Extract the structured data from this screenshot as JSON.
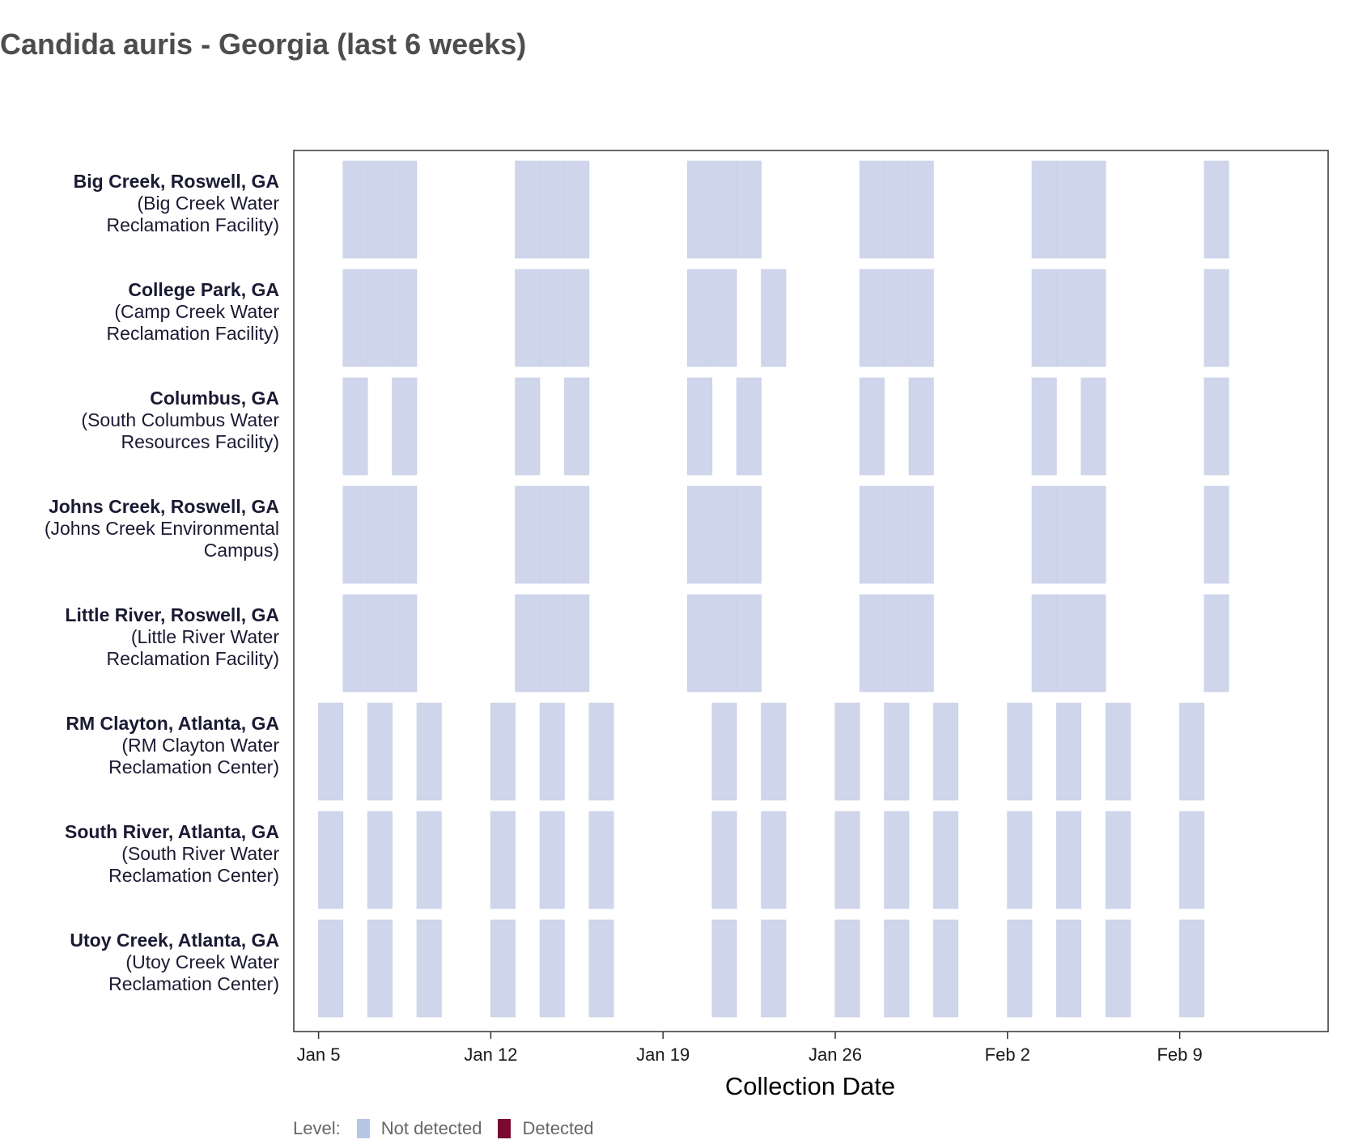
{
  "chart_data": {
    "type": "heatmap",
    "title": "Candida auris - Georgia (last 6 weeks)",
    "xlabel": "Collection Date",
    "ylabel": "",
    "x_ticks": [
      "Jan 5",
      "Jan 12",
      "Jan 19",
      "Jan 26",
      "Feb 2",
      "Feb 9"
    ],
    "xlim": [
      "2025-01-04",
      "2025-02-14"
    ],
    "colors": {
      "Not detected": "#cfd6ec",
      "Detected": "#7a0a2f"
    },
    "legend": {
      "title": "Level:",
      "position": "bottom-left",
      "entries": [
        "Not detected",
        "Detected"
      ]
    },
    "rows": [
      {
        "site": "Big Creek, Roswell, GA",
        "facility": "(Big Creek Water Reclamation Facility)",
        "not_detected": [
          "2025-01-06",
          "2025-01-07",
          "2025-01-08",
          "2025-01-13",
          "2025-01-14",
          "2025-01-15",
          "2025-01-20",
          "2025-01-21",
          "2025-01-22",
          "2025-01-27",
          "2025-01-28",
          "2025-01-29",
          "2025-02-03",
          "2025-02-04",
          "2025-02-05",
          "2025-02-10"
        ],
        "detected": []
      },
      {
        "site": "College Park, GA",
        "facility": "(Camp Creek Water Reclamation Facility)",
        "not_detected": [
          "2025-01-06",
          "2025-01-07",
          "2025-01-08",
          "2025-01-13",
          "2025-01-14",
          "2025-01-15",
          "2025-01-20",
          "2025-01-21",
          "2025-01-23",
          "2025-01-27",
          "2025-01-28",
          "2025-01-29",
          "2025-02-03",
          "2025-02-04",
          "2025-02-05",
          "2025-02-10"
        ],
        "detected": []
      },
      {
        "site": "Columbus, GA",
        "facility": "(South Columbus Water Resources Facility)",
        "not_detected": [
          "2025-01-06",
          "2025-01-08",
          "2025-01-13",
          "2025-01-15",
          "2025-01-20",
          "2025-01-22",
          "2025-01-27",
          "2025-01-29",
          "2025-02-03",
          "2025-02-05",
          "2025-02-10"
        ],
        "detected": []
      },
      {
        "site": "Johns Creek, Roswell, GA",
        "facility": "(Johns Creek Environmental Campus)",
        "not_detected": [
          "2025-01-06",
          "2025-01-07",
          "2025-01-08",
          "2025-01-13",
          "2025-01-14",
          "2025-01-15",
          "2025-01-20",
          "2025-01-21",
          "2025-01-22",
          "2025-01-27",
          "2025-01-28",
          "2025-01-29",
          "2025-02-03",
          "2025-02-04",
          "2025-02-05",
          "2025-02-10"
        ],
        "detected": []
      },
      {
        "site": "Little River, Roswell, GA",
        "facility": "(Little River Water Reclamation Facility)",
        "not_detected": [
          "2025-01-06",
          "2025-01-07",
          "2025-01-08",
          "2025-01-13",
          "2025-01-14",
          "2025-01-15",
          "2025-01-20",
          "2025-01-21",
          "2025-01-22",
          "2025-01-27",
          "2025-01-28",
          "2025-01-29",
          "2025-02-03",
          "2025-02-04",
          "2025-02-05",
          "2025-02-10"
        ],
        "detected": []
      },
      {
        "site": "RM Clayton, Atlanta, GA",
        "facility": "(RM Clayton Water Reclamation Center)",
        "not_detected": [
          "2025-01-05",
          "2025-01-07",
          "2025-01-09",
          "2025-01-12",
          "2025-01-14",
          "2025-01-16",
          "2025-01-21",
          "2025-01-23",
          "2025-01-26",
          "2025-01-28",
          "2025-01-30",
          "2025-02-02",
          "2025-02-04",
          "2025-02-06",
          "2025-02-09"
        ],
        "detected": []
      },
      {
        "site": "South River, Atlanta, GA",
        "facility": "(South River Water Reclamation Center)",
        "not_detected": [
          "2025-01-05",
          "2025-01-07",
          "2025-01-09",
          "2025-01-12",
          "2025-01-14",
          "2025-01-16",
          "2025-01-21",
          "2025-01-23",
          "2025-01-26",
          "2025-01-28",
          "2025-01-30",
          "2025-02-02",
          "2025-02-04",
          "2025-02-06",
          "2025-02-09"
        ],
        "detected": []
      },
      {
        "site": "Utoy Creek, Atlanta, GA",
        "facility": "(Utoy Creek Water Reclamation Center)",
        "not_detected": [
          "2025-01-05",
          "2025-01-07",
          "2025-01-09",
          "2025-01-12",
          "2025-01-14",
          "2025-01-16",
          "2025-01-21",
          "2025-01-23",
          "2025-01-26",
          "2025-01-28",
          "2025-01-30",
          "2025-02-02",
          "2025-02-04",
          "2025-02-06",
          "2025-02-09"
        ],
        "detected": []
      }
    ]
  }
}
